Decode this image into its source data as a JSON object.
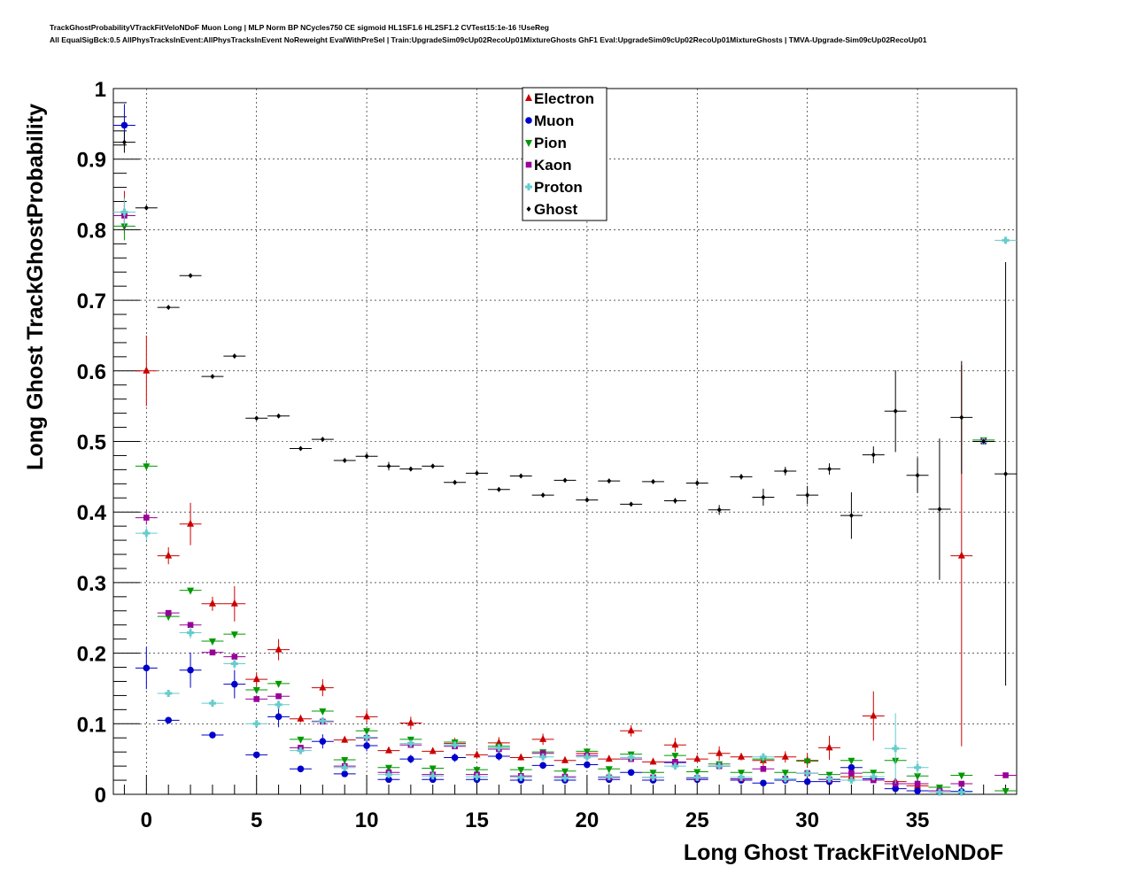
{
  "header": {
    "line1": "TrackGhostProbabilityVTrackFitVeloNDoF Muon Long | MLP Norm BP NCycles750 CE sigmoid HL1SF1.6 HL2SF1.2 CVTest15:1e-16 !UseReg",
    "line2": "All EqualSigBck:0.5 AllPhysTracksInEvent:AllPhysTracksInEvent NoReweight EvalWithPreSel | Train:UpgradeSim09cUp02RecoUp01MixtureGhosts GhF1 Eval:UpgradeSim09cUp02RecoUp01MixtureGhosts | TMVA-Upgrade-Sim09cUp02RecoUp01"
  },
  "chart_data": {
    "type": "scatter",
    "xlabel": "Long Ghost TrackFitVeloNDoF",
    "ylabel": "Long Ghost TrackGhostProbability",
    "xlim": [
      -1.5,
      39.5
    ],
    "ylim": [
      0,
      1
    ],
    "xticks": [
      "0",
      "5",
      "10",
      "15",
      "20",
      "25",
      "30",
      "35"
    ],
    "yticks": [
      "0",
      "0.1",
      "0.2",
      "0.3",
      "0.4",
      "0.5",
      "0.6",
      "0.7",
      "0.8",
      "0.9",
      "1"
    ],
    "grid": true,
    "legend_position": "top-center",
    "series": [
      {
        "name": "Electron",
        "color": "#cc0000",
        "marker": "triangle-up",
        "x": [
          -1,
          0,
          1,
          2,
          3,
          4,
          5,
          6,
          7,
          8,
          9,
          10,
          11,
          12,
          13,
          14,
          15,
          16,
          17,
          18,
          19,
          20,
          21,
          22,
          23,
          24,
          25,
          26,
          27,
          28,
          29,
          30,
          31,
          32,
          33,
          34,
          35,
          36,
          37
        ],
        "y": [
          0.825,
          0.6,
          0.338,
          0.383,
          0.27,
          0.27,
          0.163,
          0.205,
          0.107,
          0.151,
          0.077,
          0.11,
          0.062,
          0.101,
          0.061,
          0.072,
          0.056,
          0.073,
          0.052,
          0.078,
          0.048,
          0.058,
          0.05,
          0.09,
          0.046,
          0.07,
          0.05,
          0.058,
          0.053,
          0.048,
          0.053,
          0.048,
          0.066,
          0.025,
          0.111,
          0.018,
          0.012,
          0.005,
          0.338
        ],
        "err": [
          0.03,
          0.05,
          0.012,
          0.03,
          0.01,
          0.025,
          0.01,
          0.015,
          0.005,
          0.012,
          0.004,
          0.009,
          0.004,
          0.009,
          0.004,
          0.008,
          0.004,
          0.008,
          0.004,
          0.008,
          0.004,
          0.007,
          0.004,
          0.008,
          0.004,
          0.01,
          0.004,
          0.01,
          0.005,
          0.01,
          0.008,
          0.01,
          0.017,
          0.005,
          0.035,
          0.005,
          0.005,
          0.003,
          0.27
        ]
      },
      {
        "name": "Muon",
        "color": "#0000cc",
        "marker": "circle",
        "x": [
          -1,
          0,
          1,
          2,
          3,
          4,
          5,
          6,
          7,
          8,
          9,
          10,
          11,
          12,
          13,
          14,
          15,
          16,
          17,
          18,
          19,
          20,
          21,
          22,
          23,
          24,
          25,
          26,
          27,
          28,
          29,
          30,
          31,
          32,
          33,
          34,
          35,
          36,
          37
        ],
        "y": [
          0.948,
          0.179,
          0.105,
          0.176,
          0.084,
          0.156,
          0.056,
          0.11,
          0.036,
          0.075,
          0.029,
          0.069,
          0.021,
          0.05,
          0.021,
          0.052,
          0.021,
          0.054,
          0.02,
          0.041,
          0.02,
          0.042,
          0.021,
          0.031,
          0.02,
          0.045,
          0.021,
          0.04,
          0.02,
          0.016,
          0.02,
          0.018,
          0.018,
          0.038,
          0.022,
          0.008,
          0.005,
          0.005,
          0.004
        ],
        "err": [
          0.03,
          0.03,
          0.003,
          0.025,
          0.003,
          0.02,
          0.003,
          0.015,
          0.002,
          0.01,
          0.002,
          0.008,
          0.002,
          0.006,
          0.002,
          0.006,
          0.002,
          0.006,
          0.002,
          0.005,
          0.002,
          0.005,
          0.002,
          0.004,
          0.002,
          0.005,
          0.002,
          0.005,
          0.002,
          0.003,
          0.002,
          0.003,
          0.003,
          0.005,
          0.004,
          0.003,
          0.003,
          0.003,
          0.003
        ]
      },
      {
        "name": "Pion",
        "color": "#009900",
        "marker": "triangle-down",
        "x": [
          -1,
          0,
          1,
          2,
          3,
          4,
          5,
          6,
          7,
          8,
          9,
          10,
          11,
          12,
          13,
          14,
          15,
          16,
          17,
          18,
          19,
          20,
          21,
          22,
          23,
          24,
          25,
          26,
          27,
          28,
          29,
          30,
          31,
          32,
          33,
          34,
          35,
          36,
          37,
          38,
          39
        ],
        "y": [
          0.805,
          0.465,
          0.252,
          0.289,
          0.217,
          0.227,
          0.148,
          0.157,
          0.078,
          0.118,
          0.049,
          0.09,
          0.038,
          0.078,
          0.037,
          0.074,
          0.035,
          0.068,
          0.035,
          0.06,
          0.033,
          0.061,
          0.036,
          0.057,
          0.031,
          0.055,
          0.032,
          0.043,
          0.031,
          0.05,
          0.031,
          0.047,
          0.028,
          0.048,
          0.031,
          0.048,
          0.026,
          0.01,
          0.027,
          0.502,
          0.005
        ],
        "err": [
          0.02,
          0.005,
          0.003,
          0.002,
          0.002,
          0.002,
          0.002,
          0.002,
          0.001,
          0.002,
          0.001,
          0.002,
          0.001,
          0.002,
          0.001,
          0.002,
          0.001,
          0.002,
          0.001,
          0.002,
          0.001,
          0.002,
          0.001,
          0.002,
          0.001,
          0.002,
          0.001,
          0.002,
          0.001,
          0.002,
          0.001,
          0.002,
          0.001,
          0.002,
          0.002,
          0.002,
          0.002,
          0.001,
          0.002,
          0.003,
          0.002
        ]
      },
      {
        "name": "Kaon",
        "color": "#990099",
        "marker": "square",
        "x": [
          -1,
          0,
          1,
          2,
          3,
          4,
          5,
          6,
          7,
          8,
          9,
          10,
          11,
          12,
          13,
          14,
          15,
          16,
          17,
          18,
          19,
          20,
          21,
          22,
          23,
          24,
          25,
          26,
          27,
          28,
          29,
          30,
          31,
          32,
          33,
          34,
          35,
          36,
          37,
          38,
          39
        ],
        "y": [
          0.82,
          0.392,
          0.257,
          0.24,
          0.201,
          0.195,
          0.135,
          0.139,
          0.066,
          0.103,
          0.04,
          0.08,
          0.031,
          0.07,
          0.028,
          0.068,
          0.028,
          0.064,
          0.026,
          0.058,
          0.025,
          0.055,
          0.024,
          0.05,
          0.024,
          0.046,
          0.023,
          0.04,
          0.022,
          0.036,
          0.022,
          0.03,
          0.021,
          0.03,
          0.02,
          0.015,
          0.015,
          0.005,
          0.015,
          0.5,
          0.027
        ],
        "err": [
          0.02,
          0.01,
          0.003,
          0.003,
          0.002,
          0.003,
          0.002,
          0.002,
          0.002,
          0.002,
          0.002,
          0.002,
          0.001,
          0.002,
          0.001,
          0.002,
          0.001,
          0.002,
          0.001,
          0.002,
          0.001,
          0.002,
          0.001,
          0.002,
          0.001,
          0.002,
          0.001,
          0.002,
          0.001,
          0.002,
          0.001,
          0.002,
          0.001,
          0.002,
          0.002,
          0.002,
          0.002,
          0.002,
          0.002,
          0.005,
          0.003
        ]
      },
      {
        "name": "Proton",
        "color": "#66cccc",
        "marker": "cross",
        "x": [
          -1,
          0,
          1,
          2,
          3,
          4,
          5,
          6,
          7,
          8,
          9,
          10,
          11,
          12,
          13,
          14,
          15,
          16,
          17,
          18,
          19,
          20,
          21,
          22,
          23,
          24,
          25,
          26,
          27,
          28,
          29,
          30,
          31,
          32,
          33,
          34,
          35,
          36,
          37,
          38,
          39
        ],
        "y": [
          0.825,
          0.37,
          0.143,
          0.229,
          0.129,
          0.185,
          0.1,
          0.127,
          0.062,
          0.104,
          0.038,
          0.081,
          0.028,
          0.072,
          0.026,
          0.07,
          0.025,
          0.066,
          0.024,
          0.053,
          0.023,
          0.053,
          0.025,
          0.052,
          0.024,
          0.04,
          0.024,
          0.04,
          0.024,
          0.053,
          0.022,
          0.03,
          0.022,
          0.02,
          0.025,
          0.065,
          0.038,
          0.003,
          0.003,
          0.5,
          0.785
        ],
        "err": [
          0.02,
          0.01,
          0.003,
          0.008,
          0.003,
          0.007,
          0.003,
          0.006,
          0.002,
          0.004,
          0.002,
          0.004,
          0.002,
          0.003,
          0.002,
          0.003,
          0.002,
          0.003,
          0.002,
          0.003,
          0.002,
          0.003,
          0.002,
          0.003,
          0.002,
          0.003,
          0.002,
          0.003,
          0.002,
          0.003,
          0.002,
          0.003,
          0.003,
          0.003,
          0.004,
          0.05,
          0.01,
          0.002,
          0.002,
          0.004,
          0.003
        ]
      },
      {
        "name": "Ghost",
        "color": "#000000",
        "marker": "diamond",
        "x": [
          -1,
          0,
          1,
          2,
          3,
          4,
          5,
          6,
          7,
          8,
          9,
          10,
          11,
          12,
          13,
          14,
          15,
          16,
          17,
          18,
          19,
          20,
          21,
          22,
          23,
          24,
          25,
          26,
          27,
          28,
          29,
          30,
          31,
          32,
          33,
          34,
          35,
          36,
          37,
          38,
          39
        ],
        "y": [
          0.924,
          0.831,
          0.69,
          0.735,
          0.592,
          0.621,
          0.533,
          0.536,
          0.49,
          0.503,
          0.473,
          0.479,
          0.465,
          0.461,
          0.465,
          0.442,
          0.455,
          0.432,
          0.451,
          0.424,
          0.445,
          0.417,
          0.444,
          0.411,
          0.443,
          0.416,
          0.441,
          0.403,
          0.45,
          0.421,
          0.458,
          0.424,
          0.461,
          0.395,
          0.481,
          0.543,
          0.452,
          0.404,
          0.534,
          0.5,
          0.454
        ],
        "err": [
          0.015,
          0.003,
          0.002,
          0.002,
          0.002,
          0.003,
          0.002,
          0.003,
          0.002,
          0.003,
          0.002,
          0.004,
          0.006,
          0.003,
          0.003,
          0.003,
          0.003,
          0.003,
          0.003,
          0.003,
          0.003,
          0.003,
          0.003,
          0.003,
          0.003,
          0.004,
          0.004,
          0.007,
          0.004,
          0.012,
          0.006,
          0.013,
          0.008,
          0.033,
          0.012,
          0.058,
          0.025,
          0.1,
          0.08,
          0.003,
          0.3
        ]
      }
    ]
  }
}
